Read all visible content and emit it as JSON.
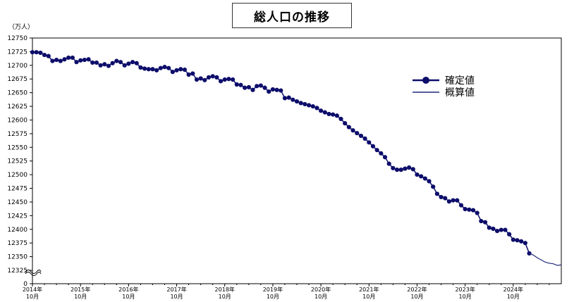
{
  "chart_data": {
    "type": "line",
    "title": "総人口の推移",
    "ylabel": "（万人）",
    "ylim": [
      12325,
      12750
    ],
    "y_ticks": [
      0,
      12325,
      12350,
      12375,
      12400,
      12425,
      12450,
      12475,
      12500,
      12525,
      12550,
      12575,
      12600,
      12625,
      12650,
      12675,
      12700,
      12725,
      12750
    ],
    "axis_break": true,
    "x_ticks": [
      {
        "line1": "2014年",
        "line2": "10月",
        "index": 0
      },
      {
        "line1": "2015年",
        "line2": "10月",
        "index": 12
      },
      {
        "line1": "2016年",
        "line2": "10月",
        "index": 24
      },
      {
        "line1": "2017年",
        "line2": "10月",
        "index": 36
      },
      {
        "line1": "2018年",
        "line2": "10月",
        "index": 48
      },
      {
        "line1": "2019年",
        "line2": "10月",
        "index": 60
      },
      {
        "line1": "2020年",
        "line2": "10月",
        "index": 72
      },
      {
        "line1": "2021年",
        "line2": "10月",
        "index": 84
      },
      {
        "line1": "2022年",
        "line2": "10月",
        "index": 96
      },
      {
        "line1": "2023年",
        "line2": "10月",
        "index": 108
      },
      {
        "line1": "2024年",
        "line2": "10月",
        "index": 120
      }
    ],
    "x_count": 133,
    "legend_position": "top-right",
    "series": [
      {
        "name": "確定値",
        "color": "#0d0d6b",
        "marker": "circle",
        "start_index": 0,
        "values": [
          12724,
          12724,
          12723,
          12719,
          12717,
          12708,
          12710,
          12708,
          12711,
          12714,
          12714,
          12706,
          12709,
          12710,
          12711,
          12705,
          12705,
          12700,
          12702,
          12699,
          12704,
          12708,
          12706,
          12700,
          12703,
          12706,
          12704,
          12696,
          12694,
          12693,
          12693,
          12691,
          12695,
          12697,
          12695,
          12688,
          12691,
          12693,
          12692,
          12683,
          12685,
          12674,
          12676,
          12673,
          12678,
          12680,
          12678,
          12671,
          12674,
          12675,
          12674,
          12665,
          12664,
          12659,
          12660,
          12655,
          12662,
          12663,
          12659,
          12652,
          12656,
          12655,
          12654,
          12640,
          12641,
          12637,
          12634,
          12631,
          12629,
          12627,
          12625,
          12622,
          12617,
          12614,
          12611,
          12610,
          12608,
          12602,
          12594,
          12587,
          12581,
          12576,
          12571,
          12566,
          12559,
          12552,
          12545,
          12539,
          12532,
          12520,
          12512,
          12509,
          12509,
          12511,
          12513,
          12510,
          12500,
          12497,
          12493,
          12488,
          12478,
          12465,
          12459,
          12457,
          12451,
          12453,
          12453,
          12444,
          12437,
          12436,
          12435,
          12430,
          12415,
          12413,
          12403,
          12401,
          12397,
          12399,
          12399,
          12391,
          12381,
          12380,
          12378,
          12375,
          12356
        ]
      },
      {
        "name": "概算値",
        "color": "#1f2a7a",
        "marker": "none",
        "start_index": 124,
        "values": [
          12356,
          12353,
          12348,
          12344,
          12340,
          12338,
          12337,
          12334,
          12335
        ]
      }
    ]
  }
}
